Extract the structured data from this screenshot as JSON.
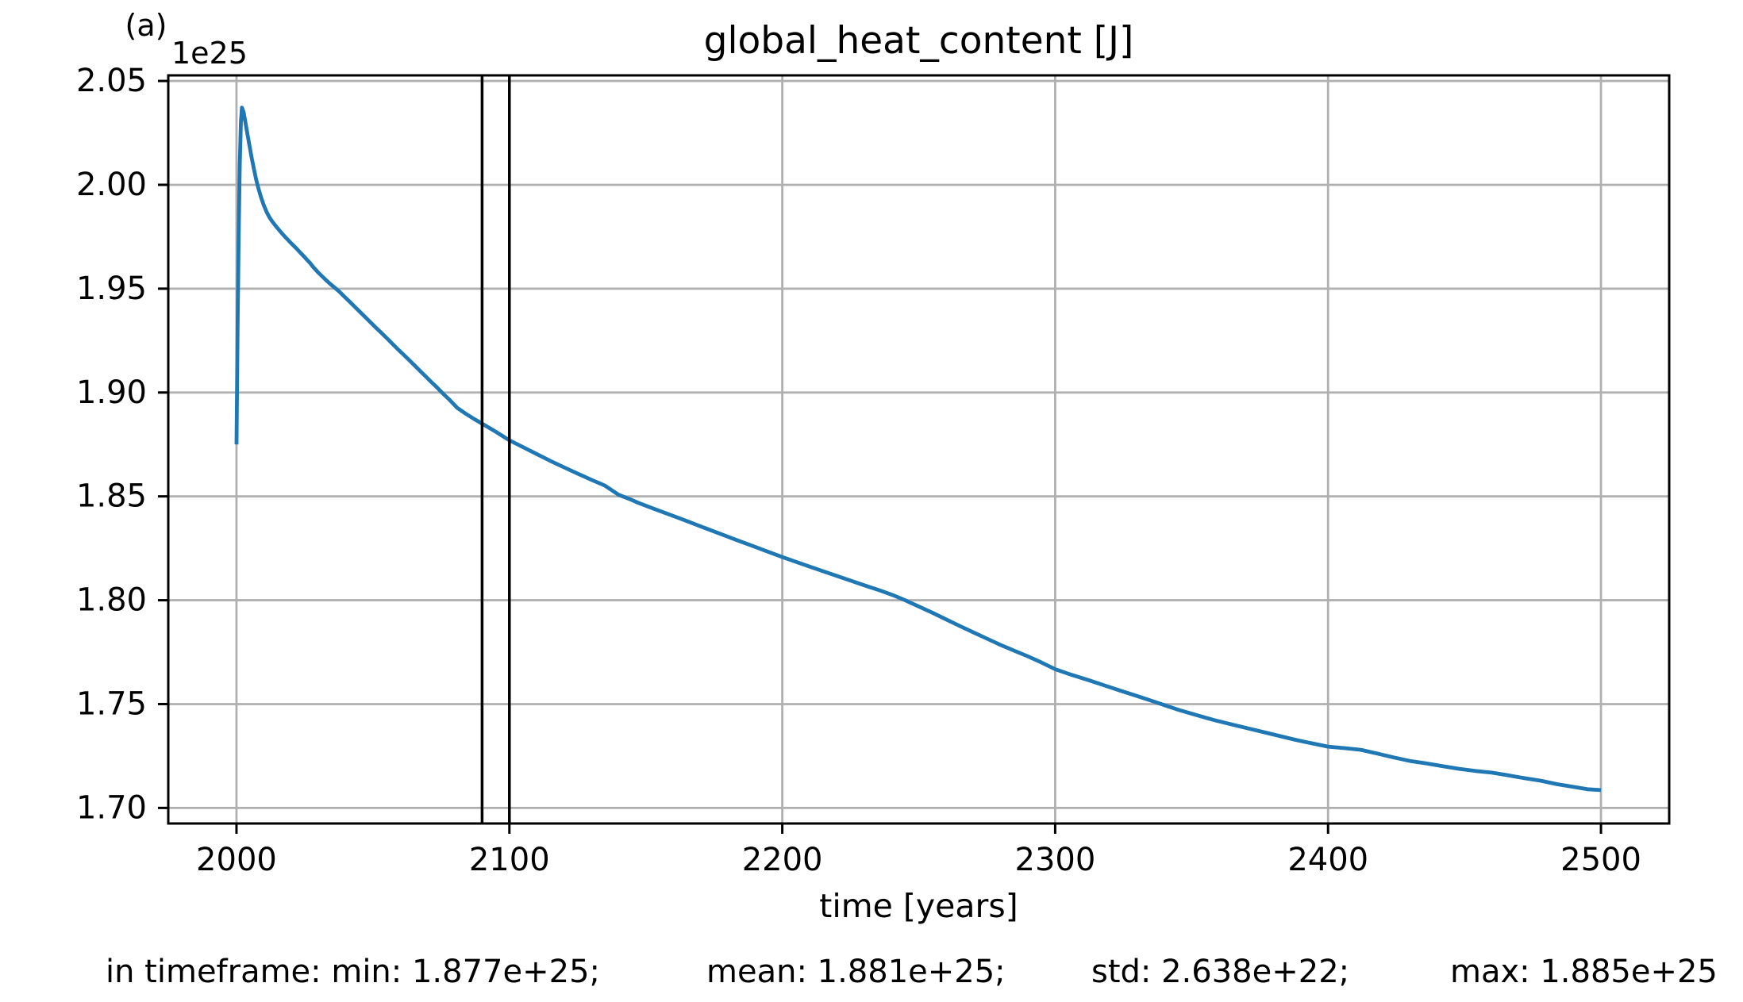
{
  "panel_label": "(a)",
  "chart_data": {
    "type": "line",
    "title": "global_heat_content [J]",
    "xlabel": "time [years]",
    "y_offset_label": "1e25",
    "x_ticks": [
      2000,
      2100,
      2200,
      2300,
      2400,
      2500
    ],
    "y_ticks": [
      "2.05",
      "2.00",
      "1.95",
      "1.90",
      "1.85",
      "1.80",
      "1.75",
      "1.70"
    ],
    "y_tick_values": [
      2.05,
      2.0,
      1.95,
      1.9,
      1.85,
      1.8,
      1.75,
      1.7
    ],
    "xlim": [
      1975,
      2525
    ],
    "ylim": [
      1.6925,
      2.0527
    ],
    "grid": true,
    "legend": false,
    "line_color": "#1f77b4",
    "grid_color": "#b0b0b0",
    "vline_color": "#000000",
    "vlines": [
      2090,
      2100
    ],
    "series": [
      {
        "name": "global_heat_content",
        "points": [
          [
            2000,
            1.875
          ],
          [
            2000.4,
            1.93
          ],
          [
            2000.8,
            1.975
          ],
          [
            2001.2,
            2.01
          ],
          [
            2001.6,
            2.03
          ],
          [
            2002,
            2.0372
          ],
          [
            2002.6,
            2.035
          ],
          [
            2003.2,
            2.0305
          ],
          [
            2004,
            2.0245
          ],
          [
            2004.8,
            2.0185
          ],
          [
            2005.6,
            2.0128
          ],
          [
            2006.4,
            2.0075
          ],
          [
            2007.2,
            2.0026
          ],
          [
            2008,
            1.9984
          ],
          [
            2009,
            1.994
          ],
          [
            2010,
            1.9902
          ],
          [
            2011,
            1.987
          ],
          [
            2012,
            1.9845
          ],
          [
            2013,
            1.9825
          ],
          [
            2014,
            1.9808
          ],
          [
            2015,
            1.9792
          ],
          [
            2016,
            1.9776
          ],
          [
            2017,
            1.9761
          ],
          [
            2018,
            1.9747
          ],
          [
            2019,
            1.9733
          ],
          [
            2020,
            1.9719
          ],
          [
            2021,
            1.9706
          ],
          [
            2022,
            1.9693
          ],
          [
            2023,
            1.9679
          ],
          [
            2024,
            1.9665
          ],
          [
            2025,
            1.9651
          ],
          [
            2026,
            1.9637
          ],
          [
            2027,
            1.9623
          ],
          [
            2028,
            1.9606
          ],
          [
            2029,
            1.9591
          ],
          [
            2030,
            1.9577
          ],
          [
            2031.5,
            1.9558
          ],
          [
            2033,
            1.9539
          ],
          [
            2034.5,
            1.9521
          ],
          [
            2036,
            1.9505
          ],
          [
            2037.5,
            1.9488
          ],
          [
            2039.5,
            1.9462
          ],
          [
            2041.5,
            1.9437
          ],
          [
            2043.5,
            1.9411
          ],
          [
            2045.5,
            1.9385
          ],
          [
            2047.5,
            1.9359
          ],
          [
            2049.5,
            1.9333
          ],
          [
            2051.5,
            1.9307
          ],
          [
            2053.5,
            1.9282
          ],
          [
            2055.5,
            1.9256
          ],
          [
            2057.5,
            1.923
          ],
          [
            2059.5,
            1.9204
          ],
          [
            2061.5,
            1.9179
          ],
          [
            2063.5,
            1.9153
          ],
          [
            2065.5,
            1.9127
          ],
          [
            2067.5,
            1.9101
          ],
          [
            2069.5,
            1.9075
          ],
          [
            2071.5,
            1.9049
          ],
          [
            2073.5,
            1.9024
          ],
          [
            2075.3,
            1.9
          ],
          [
            2078,
            1.8966
          ],
          [
            2081,
            1.8925
          ],
          [
            2084,
            1.8898
          ],
          [
            2087,
            1.8873
          ],
          [
            2090,
            1.885
          ],
          [
            2095,
            1.8811
          ],
          [
            2100,
            1.877
          ],
          [
            2105,
            1.8737
          ],
          [
            2110,
            1.8704
          ],
          [
            2115,
            1.8671
          ],
          [
            2120,
            1.864
          ],
          [
            2125,
            1.861
          ],
          [
            2130,
            1.858
          ],
          [
            2135,
            1.8552
          ],
          [
            2140,
            1.8508
          ],
          [
            2145,
            1.8482
          ],
          [
            2147,
            1.847
          ],
          [
            2153,
            1.844
          ],
          [
            2159,
            1.8411
          ],
          [
            2165,
            1.8381
          ],
          [
            2171,
            1.8351
          ],
          [
            2177,
            1.8321
          ],
          [
            2183,
            1.8291
          ],
          [
            2189,
            1.8262
          ],
          [
            2195,
            1.8232
          ],
          [
            2200,
            1.8208
          ],
          [
            2206,
            1.818
          ],
          [
            2212,
            1.8153
          ],
          [
            2218,
            1.8126
          ],
          [
            2224,
            1.8099
          ],
          [
            2230,
            1.8072
          ],
          [
            2236,
            1.8046
          ],
          [
            2241,
            1.8022
          ],
          [
            2245,
            1.8
          ],
          [
            2250,
            1.797
          ],
          [
            2255,
            1.794
          ],
          [
            2260,
            1.7908
          ],
          [
            2265,
            1.7876
          ],
          [
            2270,
            1.7845
          ],
          [
            2275,
            1.7815
          ],
          [
            2280,
            1.7785
          ],
          [
            2285,
            1.7757
          ],
          [
            2290,
            1.773
          ],
          [
            2295,
            1.77
          ],
          [
            2300,
            1.7668
          ],
          [
            2306,
            1.7641
          ],
          [
            2312,
            1.7616
          ],
          [
            2318,
            1.759
          ],
          [
            2324,
            1.7564
          ],
          [
            2330,
            1.7539
          ],
          [
            2336,
            1.7513
          ],
          [
            2340,
            1.7495
          ],
          [
            2346,
            1.7469
          ],
          [
            2352,
            1.7446
          ],
          [
            2358,
            1.7424
          ],
          [
            2364,
            1.7404
          ],
          [
            2370,
            1.7385
          ],
          [
            2376,
            1.7366
          ],
          [
            2382,
            1.7347
          ],
          [
            2388,
            1.7328
          ],
          [
            2394,
            1.7311
          ],
          [
            2400,
            1.7295
          ],
          [
            2406,
            1.7288
          ],
          [
            2412,
            1.728
          ],
          [
            2418,
            1.7262
          ],
          [
            2424,
            1.7243
          ],
          [
            2430,
            1.7226
          ],
          [
            2436,
            1.7214
          ],
          [
            2442,
            1.7201
          ],
          [
            2448,
            1.7188
          ],
          [
            2454,
            1.7178
          ],
          [
            2460,
            1.717
          ],
          [
            2466,
            1.7157
          ],
          [
            2472,
            1.7143
          ],
          [
            2478,
            1.7131
          ],
          [
            2484,
            1.7114
          ],
          [
            2490,
            1.7101
          ],
          [
            2495,
            1.709
          ],
          [
            2500,
            1.7086
          ]
        ]
      }
    ]
  },
  "stats": {
    "segments": [
      "in timeframe: min: 1.877e+25;",
      "mean: 1.881e+25;",
      "std: 2.638e+22;",
      "max: 1.885e+25"
    ]
  }
}
